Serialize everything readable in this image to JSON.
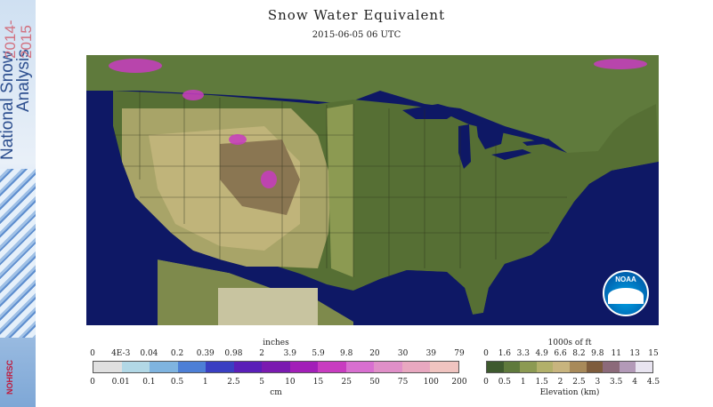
{
  "title": "Snow Water Equivalent",
  "subtitle": "2015-06-05 06 UTC",
  "sidebar": {
    "line1": "National Snow",
    "line2": "Analysis",
    "year1": "2014-",
    "year2": "2015",
    "logo": "NOHRSC"
  },
  "noaa_logo": "NOAA",
  "swe_legend": {
    "top_unit": "inches",
    "bottom_unit": "cm",
    "top_ticks": [
      "0",
      "4E-3",
      "0.04",
      "0.2",
      "0.39",
      "0.98",
      "2",
      "3.9",
      "5.9",
      "9.8",
      "20",
      "30",
      "39",
      "79"
    ],
    "bottom_ticks": [
      "0",
      "0.01",
      "0.1",
      "0.5",
      "1",
      "2.5",
      "5",
      "10",
      "15",
      "25",
      "50",
      "75",
      "100",
      "200"
    ],
    "colors": [
      "#e0e0e0",
      "#b2d8e6",
      "#7fb4e0",
      "#4d7fd6",
      "#3a3fc2",
      "#5a1fb8",
      "#7a1ab0",
      "#a21fb8",
      "#c83cc0",
      "#d86fd0",
      "#e08fc8",
      "#e8a8c0",
      "#f0c4c0"
    ]
  },
  "elev_legend": {
    "top_unit": "1000s of ft",
    "bottom_unit": "Elevation (km)",
    "top_ticks": [
      "0",
      "1.6",
      "3.3",
      "4.9",
      "6.6",
      "8.2",
      "9.8",
      "11",
      "13",
      "15"
    ],
    "bottom_ticks": [
      "0",
      "0.5",
      "1",
      "1.5",
      "2",
      "2.5",
      "3",
      "3.5",
      "4",
      "4.5"
    ],
    "colors": [
      "#3e5a2e",
      "#5f7a3c",
      "#8c9a52",
      "#b2b06a",
      "#c8b47e",
      "#a88a5a",
      "#7e5c3c",
      "#8c6a7a",
      "#b39ab8",
      "#e8e4f0"
    ]
  }
}
